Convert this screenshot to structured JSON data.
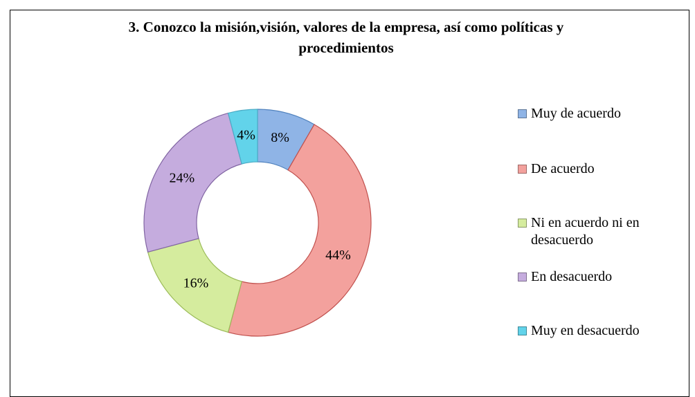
{
  "chart_data": {
    "type": "pie",
    "donut": true,
    "title": "3. Conozco la misión,visión, valores de la empresa, así como políticas y procedimientos",
    "categories": [
      "Muy de acuerdo",
      "De acuerdo",
      "Ni en acuerdo ni en desacuerdo",
      "En desacuerdo",
      "Muy en desacuerdo"
    ],
    "values": [
      8,
      44,
      16,
      24,
      4
    ],
    "value_labels": [
      "8%",
      "44%",
      "16%",
      "24%",
      "4%"
    ],
    "colors": [
      "#8fb4e6",
      "#f3a19d",
      "#d5ec9e",
      "#c5acde",
      "#62d3ea"
    ],
    "legend": "right"
  }
}
